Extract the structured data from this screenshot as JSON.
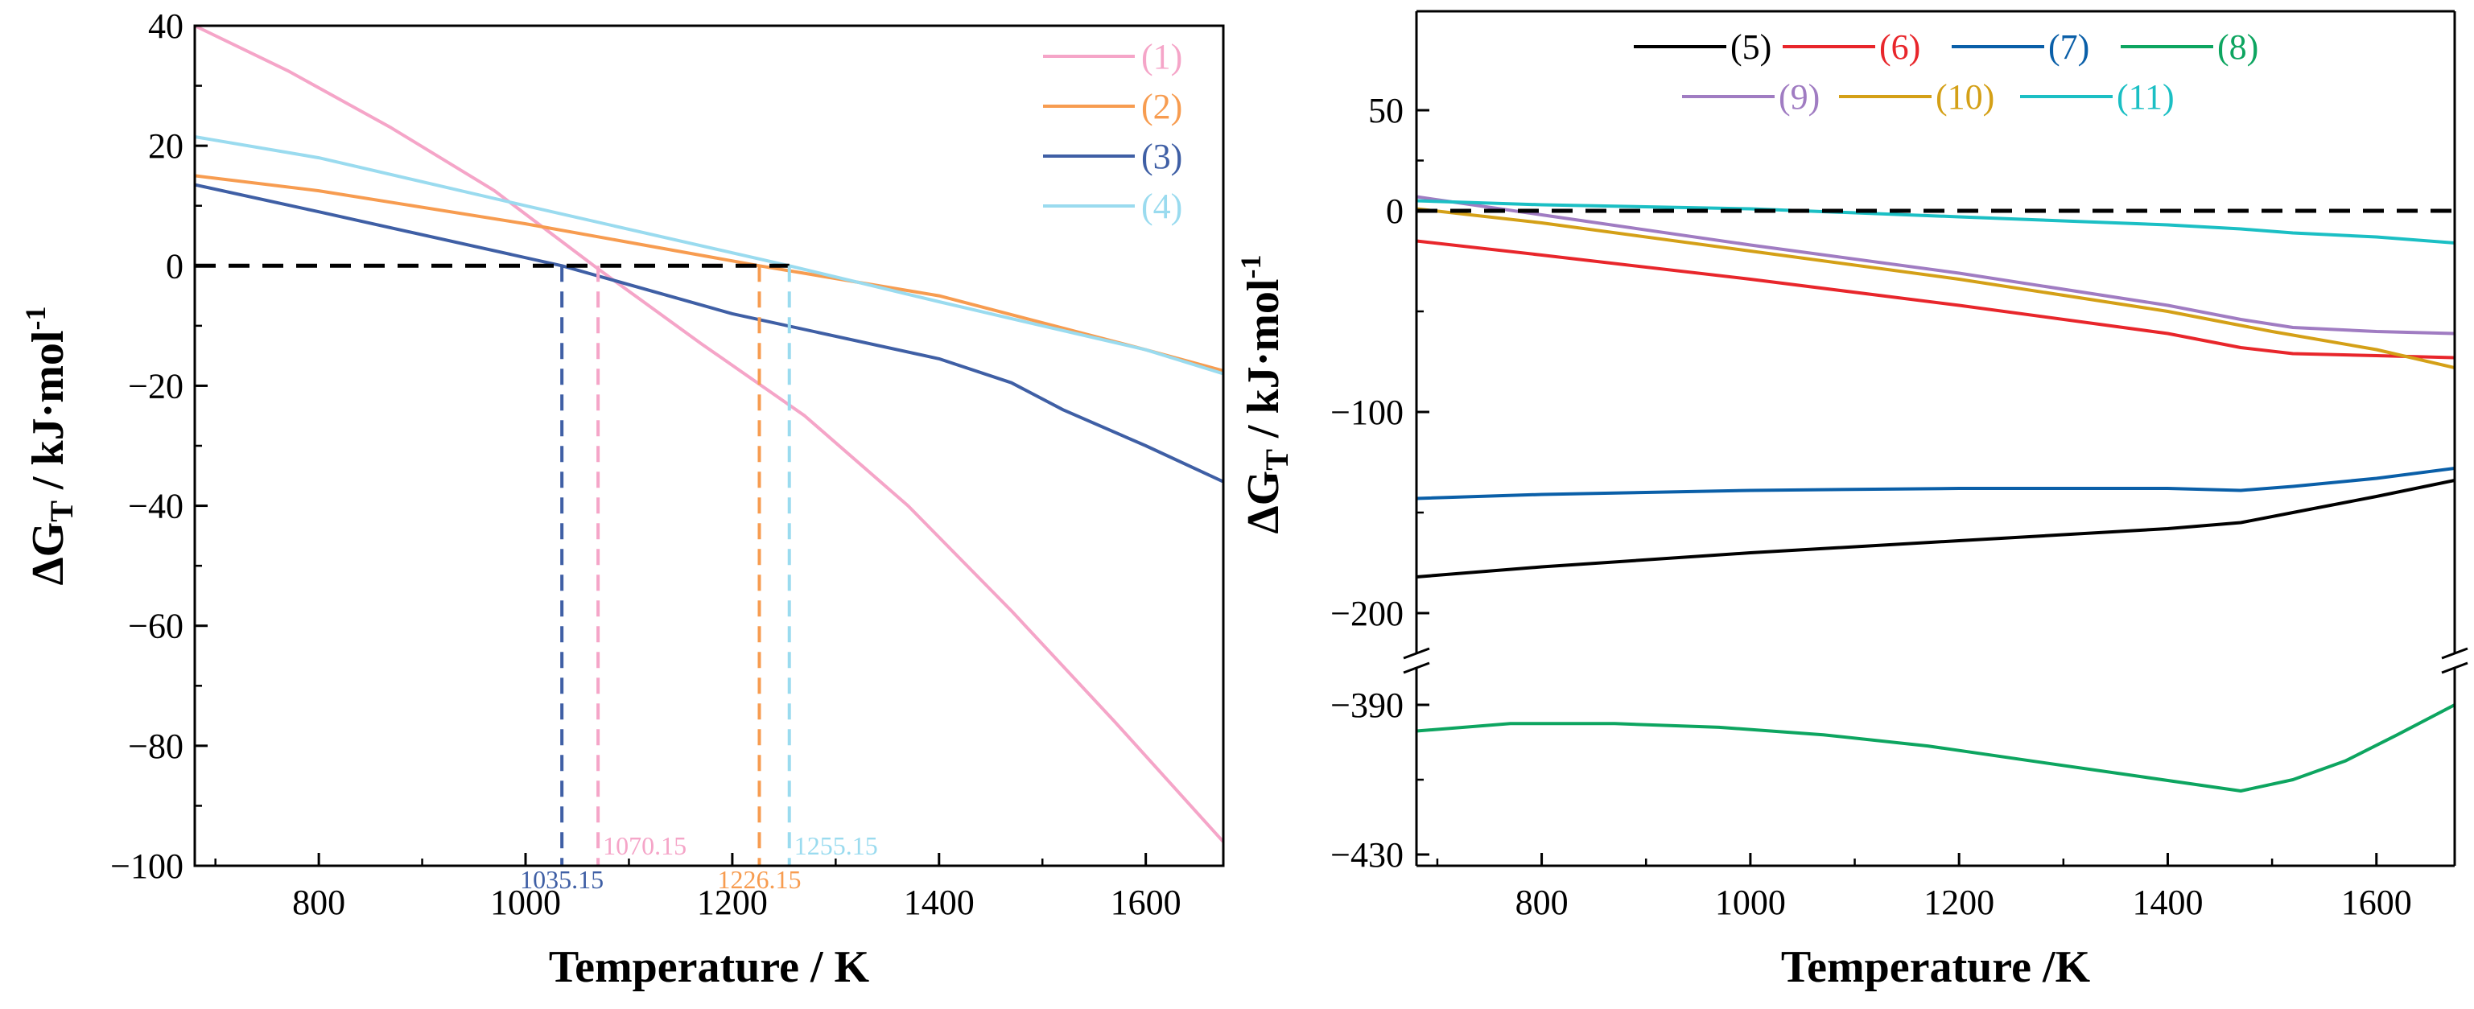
{
  "chart_data": [
    {
      "id": "left",
      "type": "line",
      "xlabel": "Temperature / K",
      "ylabel_main": "ΔG",
      "ylabel_sub": "T",
      "ylabel_rest": " / kJ·mol",
      "ylabel_sup": "-1",
      "xlim": [
        680,
        1675
      ],
      "ylim": [
        -100,
        40
      ],
      "xticks": [
        800,
        1000,
        1200,
        1400,
        1600
      ],
      "yticks": [
        40,
        20,
        0,
        -20,
        -40,
        -60,
        -80,
        -100
      ],
      "ytick_labels": [
        "40",
        "20",
        "0",
        "−20",
        "−40",
        "−60",
        "−80",
        "−100"
      ],
      "zero_line": 0,
      "series": [
        {
          "name": "(1)",
          "color": "#F5A5C8",
          "x": [
            680,
            770,
            870,
            970,
            1070,
            1170,
            1270,
            1370,
            1470,
            1570,
            1675
          ],
          "y": [
            40,
            32.5,
            23,
            12.5,
            -0.5,
            -13,
            -25,
            -40,
            -57.5,
            -76,
            -96
          ]
        },
        {
          "name": "(2)",
          "color": "#F79C50",
          "x": [
            680,
            800,
            1000,
            1226.15,
            1400,
            1600,
            1675
          ],
          "y": [
            15,
            12.5,
            7,
            0,
            -5,
            -14,
            -17.5
          ]
        },
        {
          "name": "(3)",
          "color": "#3F5FA5",
          "x": [
            680,
            800,
            1035.15,
            1200,
            1400,
            1470,
            1520,
            1600,
            1675
          ],
          "y": [
            13.5,
            9,
            0,
            -8,
            -15.5,
            -19.5,
            -24,
            -30,
            -36
          ]
        },
        {
          "name": "(4)",
          "color": "#9ADBEF",
          "x": [
            680,
            800,
            1000,
            1255.15,
            1400,
            1500,
            1600,
            1675
          ],
          "y": [
            21.5,
            18,
            10,
            0,
            -6,
            -10,
            -14,
            -18
          ]
        }
      ],
      "vlines": [
        {
          "x": 1035.15,
          "label": "1035.15",
          "color": "#3F5FA5"
        },
        {
          "x": 1070.15,
          "label": "1070.15",
          "color": "#F5A5C8"
        },
        {
          "x": 1226.15,
          "label": "1226.15",
          "color": "#F79C50"
        },
        {
          "x": 1255.15,
          "label": "1255.15",
          "color": "#9ADBEF"
        }
      ],
      "legend_position": "top-right"
    },
    {
      "id": "right",
      "type": "line",
      "xlabel": "Temperature /K",
      "ylabel_main": "ΔG",
      "ylabel_sub": "T",
      "ylabel_rest": " / kJ·mol",
      "ylabel_sup": "-1",
      "xlim": [
        680,
        1675
      ],
      "ylim_upper": [
        -215,
        100
      ],
      "ylim_lower": [
        -430,
        -385
      ],
      "axis_break": true,
      "xticks": [
        800,
        1000,
        1200,
        1400,
        1600
      ],
      "yticks_upper": [
        50,
        0,
        -100,
        -200
      ],
      "yticks_lower": [
        -390,
        -430
      ],
      "ytick_labels_upper": [
        "50",
        "0",
        "−100",
        "−200"
      ],
      "ytick_labels_lower": [
        "−390",
        "−430"
      ],
      "zero_line": 0,
      "series": [
        {
          "name": "(5)",
          "color": "#000000",
          "x": [
            680,
            800,
            1000,
            1200,
            1400,
            1470,
            1520,
            1600,
            1675
          ],
          "y": [
            -182,
            -177,
            -170,
            -164,
            -158,
            -155,
            -150,
            -142,
            -134
          ]
        },
        {
          "name": "(6)",
          "color": "#E8262B",
          "x": [
            680,
            800,
            1000,
            1200,
            1400,
            1470,
            1520,
            1600,
            1675
          ],
          "y": [
            -15,
            -22,
            -34,
            -47,
            -61,
            -68,
            -71,
            -72,
            -73
          ]
        },
        {
          "name": "(7)",
          "color": "#0A5FA8",
          "x": [
            680,
            800,
            1000,
            1200,
            1400,
            1470,
            1520,
            1600,
            1675
          ],
          "y": [
            -143,
            -141,
            -139,
            -138,
            -138,
            -139,
            -137,
            -133,
            -128
          ]
        },
        {
          "name": "(8)",
          "color": "#0DA560",
          "x": [
            680,
            770,
            870,
            970,
            1070,
            1170,
            1270,
            1370,
            1470,
            1520,
            1570,
            1620,
            1675
          ],
          "y": [
            -397,
            -395,
            -395,
            -396,
            -398,
            -401,
            -405,
            -409,
            -413,
            -410,
            -405,
            -398,
            -390
          ]
        },
        {
          "name": "(9)",
          "color": "#A07CC2",
          "x": [
            680,
            800,
            1000,
            1200,
            1400,
            1470,
            1520,
            1600,
            1675
          ],
          "y": [
            7,
            -2,
            -17,
            -31,
            -47,
            -54,
            -58,
            -60,
            -61
          ]
        },
        {
          "name": "(10)",
          "color": "#D4A017",
          "x": [
            680,
            800,
            1000,
            1200,
            1400,
            1500,
            1600,
            1675
          ],
          "y": [
            1,
            -6,
            -20,
            -34,
            -50,
            -60,
            -69,
            -78
          ]
        },
        {
          "name": "(11)",
          "color": "#1BBFC4",
          "x": [
            680,
            800,
            1000,
            1200,
            1400,
            1470,
            1520,
            1600,
            1675
          ],
          "y": [
            5,
            3,
            1,
            -3,
            -7,
            -9,
            -11,
            -13,
            -16
          ]
        }
      ],
      "legend_position": "top"
    }
  ]
}
